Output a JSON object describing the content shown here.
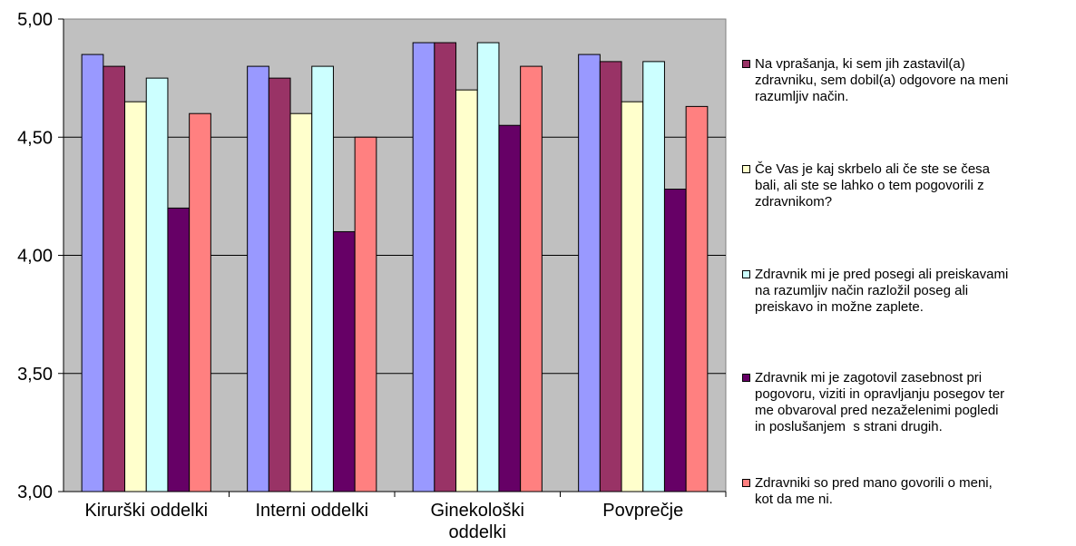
{
  "chart_data": {
    "type": "bar",
    "categories": [
      "Kirurški oddelki",
      "Interni oddelki",
      "Ginekološki\noddelki",
      "Povprečje"
    ],
    "ylim": [
      3.0,
      5.0
    ],
    "y_ticks": [
      "3,00",
      "3,50",
      "4,00",
      "4,50",
      "5,00"
    ],
    "y_tick_values": [
      3.0,
      3.5,
      4.0,
      4.5,
      5.0
    ],
    "grid": true,
    "plot_background": "#c0c0c0",
    "legend_position": "right",
    "series": [
      {
        "name": "",
        "color": "#9999ff",
        "values": [
          4.85,
          4.8,
          4.9,
          4.85
        ]
      },
      {
        "name": "Na vprašanja, ki sem jih zastavil(a) zdravniku, sem dobil(a) odgovore na meni razumljiv način.",
        "color": "#993366",
        "values": [
          4.8,
          4.75,
          4.9,
          4.82
        ]
      },
      {
        "name": "Če Vas je kaj skrbelo ali če ste se česa bali, ali ste se lahko o tem pogovorili z zdravnikom?",
        "color": "#ffffcc",
        "values": [
          4.65,
          4.6,
          4.7,
          4.65
        ]
      },
      {
        "name": "Zdravnik mi je pred posegi ali preiskavami na razumljiv način razložil poseg ali preiskavo in možne zaplete.",
        "color": "#ccffff",
        "values": [
          4.75,
          4.8,
          4.9,
          4.82
        ]
      },
      {
        "name": "Zdravnik mi je zagotovil zasebnost pri pogovoru, viziti in opravljanju posegov ter me obvaroval pred nezaželenimi pogledi in poslušanjem  s strani drugih.",
        "color": "#660066",
        "values": [
          4.2,
          4.1,
          4.55,
          4.28
        ]
      },
      {
        "name": "Zdravniki so pred mano govorili o meni, kot da me ni.",
        "color": "#ff8080",
        "values": [
          4.6,
          4.5,
          4.8,
          4.63
        ]
      }
    ],
    "legend": [
      {
        "label": "Na vprašanja, ki sem jih zastavil(a)\nzdravniku, sem dobil(a) odgovore na meni\nrazumljiv način.",
        "color": "#993366"
      },
      {
        "label": "Če Vas je kaj skrbelo ali če ste se česa\nbali, ali ste se lahko o tem pogovorili z\nzdravnikom?",
        "color": "#ffffcc"
      },
      {
        "label": "Zdravnik mi je pred posegi ali preiskavami\nna razumljiv način razložil poseg ali\npreiskavo in možne zaplete.",
        "color": "#ccffff"
      },
      {
        "label": "Zdravnik mi je zagotovil zasebnost pri\npogovoru, viziti in opravljanju posegov ter\nme obvaroval pred nezaželenimi pogledi\nin poslušanjem  s strani drugih.",
        "color": "#660066"
      },
      {
        "label": "Zdravniki so pred mano govorili o meni,\nkot da me ni.",
        "color": "#ff8080"
      }
    ]
  }
}
